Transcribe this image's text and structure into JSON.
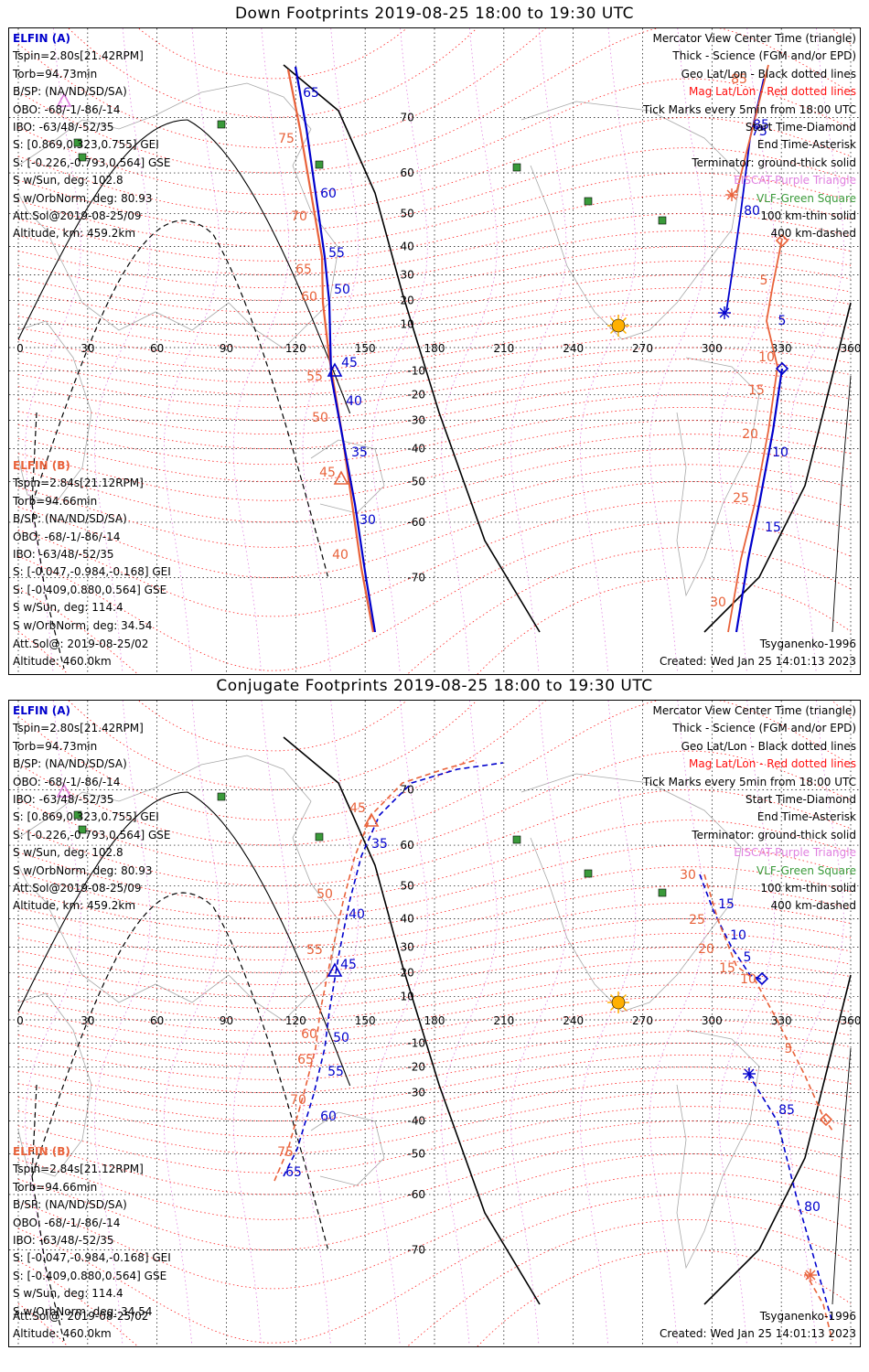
{
  "colors": {
    "elfin_a": "#0000cc",
    "elfin_b": "#e8623a",
    "mag_grid": "#ff2020",
    "geo_grid": "#000000",
    "terminator": "#000000",
    "eiscat": "#e080e0",
    "vlf": "#3a9a3a",
    "sun": "#ffb000",
    "land": "#a8a8a8"
  },
  "icons": {
    "sun": "sun-icon",
    "vlf": "green-square-icon",
    "start": "diamond-icon",
    "end": "asterisk-icon",
    "center": "triangle-icon"
  },
  "panels": [
    {
      "title": "Down Footprints 2019-08-25 18:00 to 19:30 UTC",
      "legend": {
        "mercator": "Mercator View Center Time (triangle)",
        "thick": "Thick - Science (FGM and/or EPD)",
        "geo": "Geo Lat/Lon - Black dotted lines",
        "mag": "Mag Lat/Lon - Red dotted lines",
        "ticks": "Tick Marks every 5min from 18:00 UTC",
        "start": "Start Time-Diamond",
        "end": "End Time-Asterisk",
        "terminator": "Terminator: ground-thick solid",
        "eiscat": "EISCAT-Purple Triangle",
        "vlf": "VLF-Green Square",
        "km100": "100 km-thin solid",
        "km400": "400 km-dashed"
      },
      "elfin_a": {
        "name": "ELFIN (A)",
        "lines": [
          "Tspin=2.80s[21.42RPM]",
          "Torb=94.73min",
          "B/SP: (NA/ND/SD/SA)",
          "OBO: -68/-1/-86/-14",
          "IBO: -63/48/-52/35",
          "S: [0.869,0.323,0.755] GEI",
          "S: [-0.226,-0.793,0.564] GSE",
          "S w/Sun, deg: 102.8",
          "S w/OrbNorm, deg: 80.93",
          "Att.Sol@2019-08-25/09",
          "Altitude, km: 459.2km"
        ]
      },
      "elfin_b": {
        "name": "ELFIN (B)",
        "lines": [
          "Tspin=2.84s[21.12RPM]",
          "Torb=94.66min",
          "B/SP: (NA/ND/SD/SA)",
          "OBO: -68/-1/-86/-14",
          "IBO: -63/48/-52/35",
          "S: [-0.047,-0.984,-0.168] GEI",
          "S: [-0.409,0.880,0.564] GSE",
          "S w/Sun, deg: 114.4",
          "S w/OrbNorm, deg: 34.54",
          "Att.Sol@: 2019-08-25/02",
          "Altitude: 460.0km"
        ]
      },
      "model": "Tsyganenko-1996",
      "created": "Created: Wed Jan 25 14:01:13 2023",
      "lon_ticks": [
        "0",
        "30",
        "60",
        "90",
        "120",
        "150",
        "180",
        "210",
        "240",
        "270",
        "300",
        "330",
        "360"
      ],
      "lat_ticks": [
        "70",
        "60",
        "50",
        "40",
        "30",
        "20",
        "10",
        "-10",
        "-20",
        "-30",
        "-40",
        "-50",
        "-60",
        "-70"
      ],
      "tracks": {
        "a_labels": [
          "65",
          "60",
          "55",
          "50",
          "45",
          "40",
          "35",
          "30",
          "85",
          "80",
          "75",
          "5",
          "10",
          "15"
        ],
        "b_labels": [
          "75",
          "70",
          "65",
          "60",
          "55",
          "50",
          "45",
          "40",
          "85",
          "5",
          "10",
          "15",
          "20",
          "25",
          "30"
        ]
      }
    },
    {
      "title": "Conjugate Footprints 2019-08-25 18:00 to 19:30 UTC",
      "legend": {
        "mercator": "Mercator View Center Time (triangle)",
        "thick": "Thick - Science (FGM and/or EPD)",
        "geo": "Geo Lat/Lon - Black dotted lines",
        "mag": "Mag Lat/Lon - Red dotted lines",
        "ticks": "Tick Marks every 5min from 18:00 UTC",
        "start": "Start Time-Diamond",
        "end": "End Time-Asterisk",
        "terminator": "Terminator: ground-thick solid",
        "eiscat": "EISCAT-Purple Triangle",
        "vlf": "VLF-Green Square",
        "km100": "100 km-thin solid",
        "km400": "400 km-dashed"
      },
      "elfin_a": {
        "name": "ELFIN (A)",
        "lines": [
          "Tspin=2.80s[21.42RPM]",
          "Torb=94.73min",
          "B/SP: (NA/ND/SD/SA)",
          "OBO: -68/-1/-86/-14",
          "IBO: -63/48/-52/35",
          "S: [0.869,0.323,0.755] GEI",
          "S: [-0.226,-0.793,0.564] GSE",
          "S w/Sun, deg: 102.8",
          "S w/OrbNorm, deg: 80.93",
          "Att.Sol@2019-08-25/09",
          "Altitude, km: 459.2km"
        ]
      },
      "elfin_b": {
        "name": "ELFIN (B)",
        "lines": [
          "Tspin=2.84s[21.12RPM]",
          "Torb=94.66min",
          "B/SP: (NA/ND/SD/SA)",
          "OBO: -68/-1/-86/-14",
          "IBO: -63/48/-52/35",
          "S: [-0.047,-0.984,-0.168] GEI",
          "S: [-0.409,0.880,0.564] GSE",
          "S w/Sun, deg: 114.4",
          "S w/OrbNorm, deg: 34.54",
          "Att.Sol@: 2019-08-25/02",
          "Altitude: 460.0km"
        ]
      },
      "model": "Tsyganenko-1996",
      "created": "Created: Wed Jan 25 14:01:13 2023",
      "lon_ticks": [
        "0",
        "30",
        "60",
        "90",
        "120",
        "150",
        "180",
        "210",
        "240",
        "270",
        "300",
        "330",
        "360"
      ],
      "lat_ticks": [
        "70",
        "60",
        "50",
        "40",
        "30",
        "20",
        "10",
        "-10",
        "-20",
        "-30",
        "-40",
        "-50",
        "-60",
        "-70"
      ],
      "tracks": {
        "a_labels": [
          "35",
          "40",
          "45",
          "50",
          "55",
          "60",
          "65",
          "15",
          "10",
          "5",
          "85",
          "80"
        ],
        "b_labels": [
          "45",
          "50",
          "55",
          "60",
          "65",
          "70",
          "75",
          "30",
          "25",
          "20",
          "15",
          "10",
          "5"
        ]
      }
    }
  ]
}
